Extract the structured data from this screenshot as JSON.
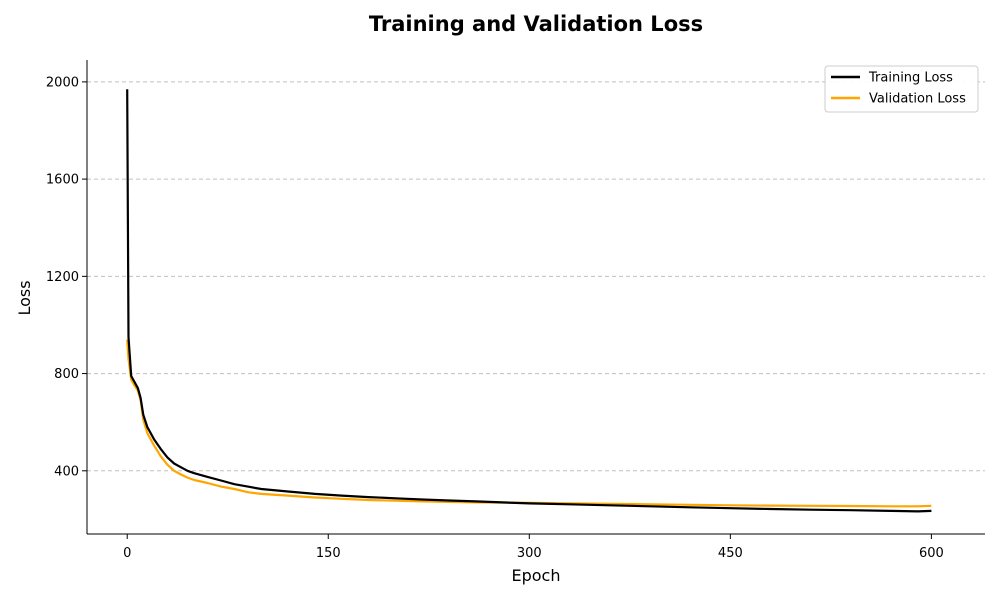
{
  "chart_data": {
    "type": "line",
    "title": "Training and Validation Loss",
    "xlabel": "Epoch",
    "ylabel": "Loss",
    "xlim": [
      -30,
      640
    ],
    "ylim": [
      140,
      2090
    ],
    "xticks": [
      0,
      150,
      300,
      450,
      600
    ],
    "yticks": [
      400,
      800,
      1200,
      1600,
      2000
    ],
    "grid": "horizontal-dashed",
    "legend_position": "top-right",
    "series": [
      {
        "name": "Training Loss",
        "color": "#000000",
        "points": [
          [
            0,
            1970
          ],
          [
            1,
            950
          ],
          [
            3,
            790
          ],
          [
            5,
            770
          ],
          [
            8,
            740
          ],
          [
            10,
            700
          ],
          [
            12,
            630
          ],
          [
            15,
            580
          ],
          [
            20,
            530
          ],
          [
            25,
            490
          ],
          [
            30,
            455
          ],
          [
            35,
            430
          ],
          [
            40,
            415
          ],
          [
            45,
            400
          ],
          [
            50,
            390
          ],
          [
            60,
            375
          ],
          [
            70,
            360
          ],
          [
            80,
            345
          ],
          [
            90,
            335
          ],
          [
            100,
            325
          ],
          [
            120,
            315
          ],
          [
            140,
            305
          ],
          [
            160,
            298
          ],
          [
            180,
            292
          ],
          [
            200,
            287
          ],
          [
            220,
            282
          ],
          [
            240,
            278
          ],
          [
            260,
            274
          ],
          [
            280,
            270
          ],
          [
            300,
            266
          ],
          [
            330,
            262
          ],
          [
            360,
            258
          ],
          [
            390,
            254
          ],
          [
            420,
            250
          ],
          [
            450,
            246
          ],
          [
            480,
            243
          ],
          [
            510,
            240
          ],
          [
            540,
            238
          ],
          [
            570,
            235
          ],
          [
            590,
            233
          ],
          [
            600,
            235
          ]
        ]
      },
      {
        "name": "Validation Loss",
        "color": "#ffa500",
        "points": [
          [
            0,
            940
          ],
          [
            1,
            860
          ],
          [
            3,
            775
          ],
          [
            5,
            755
          ],
          [
            8,
            730
          ],
          [
            10,
            690
          ],
          [
            12,
            610
          ],
          [
            15,
            555
          ],
          [
            20,
            505
          ],
          [
            25,
            460
          ],
          [
            30,
            425
          ],
          [
            35,
            400
          ],
          [
            40,
            385
          ],
          [
            45,
            372
          ],
          [
            50,
            362
          ],
          [
            60,
            350
          ],
          [
            70,
            335
          ],
          [
            80,
            325
          ],
          [
            90,
            312
          ],
          [
            100,
            305
          ],
          [
            120,
            298
          ],
          [
            140,
            290
          ],
          [
            160,
            285
          ],
          [
            180,
            280
          ],
          [
            200,
            277
          ],
          [
            220,
            274
          ],
          [
            240,
            272
          ],
          [
            260,
            270
          ],
          [
            280,
            269
          ],
          [
            300,
            268
          ],
          [
            330,
            266
          ],
          [
            360,
            264
          ],
          [
            390,
            262
          ],
          [
            420,
            260
          ],
          [
            450,
            258
          ],
          [
            480,
            257
          ],
          [
            510,
            256
          ],
          [
            540,
            255
          ],
          [
            570,
            254
          ],
          [
            590,
            254
          ],
          [
            600,
            256
          ]
        ]
      }
    ]
  }
}
